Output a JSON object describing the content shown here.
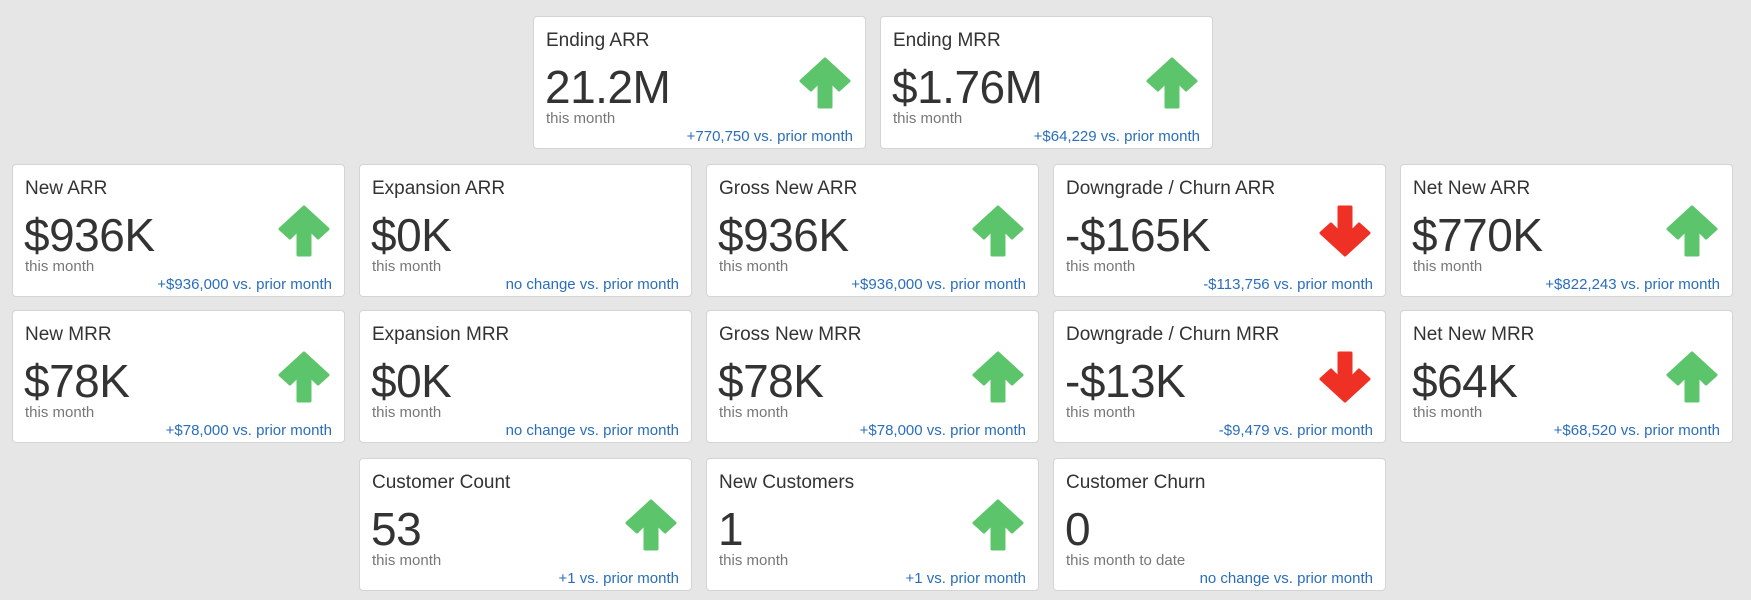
{
  "colors": {
    "up": "#5cc46a",
    "down": "#ee3124",
    "delta_link": "#2a6ebb",
    "background": "#e6e6e6"
  },
  "cards": {
    "ending_arr": {
      "title": "Ending ARR",
      "value": "21.2M",
      "period": "this month",
      "delta": "+770,750 vs. prior month",
      "trend": "up"
    },
    "ending_mrr": {
      "title": "Ending MRR",
      "value": "$1.76M",
      "period": "this month",
      "delta": "+$64,229 vs. prior month",
      "trend": "up"
    },
    "new_arr": {
      "title": "New ARR",
      "value": "$936K",
      "period": "this month",
      "delta": "+$936,000 vs. prior month",
      "trend": "up"
    },
    "expansion_arr": {
      "title": "Expansion ARR",
      "value": "$0K",
      "period": "this month",
      "delta": "no change vs. prior month",
      "trend": "none"
    },
    "gross_new_arr": {
      "title": "Gross New ARR",
      "value": "$936K",
      "period": "this month",
      "delta": "+$936,000 vs. prior month",
      "trend": "up"
    },
    "downgrade_churn_arr": {
      "title": "Downgrade / Churn ARR",
      "value": "-$165K",
      "period": "this month",
      "delta": "-$113,756 vs. prior month",
      "trend": "down"
    },
    "net_new_arr": {
      "title": "Net New ARR",
      "value": "$770K",
      "period": "this month",
      "delta": "+$822,243 vs. prior month",
      "trend": "up"
    },
    "new_mrr": {
      "title": "New MRR",
      "value": "$78K",
      "period": "this month",
      "delta": "+$78,000 vs. prior month",
      "trend": "up"
    },
    "expansion_mrr": {
      "title": "Expansion MRR",
      "value": "$0K",
      "period": "this month",
      "delta": "no change vs. prior month",
      "trend": "none"
    },
    "gross_new_mrr": {
      "title": "Gross New MRR",
      "value": "$78K",
      "period": "this month",
      "delta": "+$78,000 vs. prior month",
      "trend": "up"
    },
    "downgrade_churn_mrr": {
      "title": "Downgrade / Churn MRR",
      "value": "-$13K",
      "period": "this month",
      "delta": "-$9,479 vs. prior month",
      "trend": "down"
    },
    "net_new_mrr": {
      "title": "Net New MRR",
      "value": "$64K",
      "period": "this month",
      "delta": "+$68,520 vs. prior month",
      "trend": "up"
    },
    "customer_count": {
      "title": "Customer Count",
      "value": "53",
      "period": "this month",
      "delta": "+1 vs. prior month",
      "trend": "up"
    },
    "new_customers": {
      "title": "New Customers",
      "value": "1",
      "period": "this month",
      "delta": "+1 vs. prior month",
      "trend": "up"
    },
    "customer_churn": {
      "title": "Customer Churn",
      "value": "0",
      "period": "this month to date",
      "delta": "no change vs. prior month",
      "trend": "none"
    }
  }
}
